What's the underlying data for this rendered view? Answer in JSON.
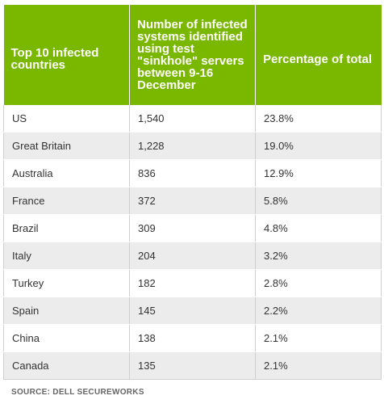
{
  "chart_data": {
    "type": "table",
    "columns": [
      "Top 10 infected countries",
      "Number of infected systems identified using test \"sinkhole\" servers between 9-16 December",
      "Percentage of total"
    ],
    "rows": [
      {
        "country": "US",
        "count": "1,540",
        "percent": "23.8%"
      },
      {
        "country": "Great Britain",
        "count": "1,228",
        "percent": "19.0%"
      },
      {
        "country": "Australia",
        "count": "836",
        "percent": "12.9%"
      },
      {
        "country": "France",
        "count": "372",
        "percent": "5.8%"
      },
      {
        "country": "Brazil",
        "count": "309",
        "percent": "4.8%"
      },
      {
        "country": "Italy",
        "count": "204",
        "percent": "3.2%"
      },
      {
        "country": "Turkey",
        "count": "182",
        "percent": "2.8%"
      },
      {
        "country": "Spain",
        "count": "145",
        "percent": "2.2%"
      },
      {
        "country": "China",
        "count": "138",
        "percent": "2.1%"
      },
      {
        "country": "Canada",
        "count": "135",
        "percent": "2.1%"
      }
    ],
    "source": "SOURCE: DELL SECUREWORKS"
  },
  "colors": {
    "header_background": "#7ab800",
    "header_text": "#ffffff",
    "row_stripe": "#ececec"
  }
}
